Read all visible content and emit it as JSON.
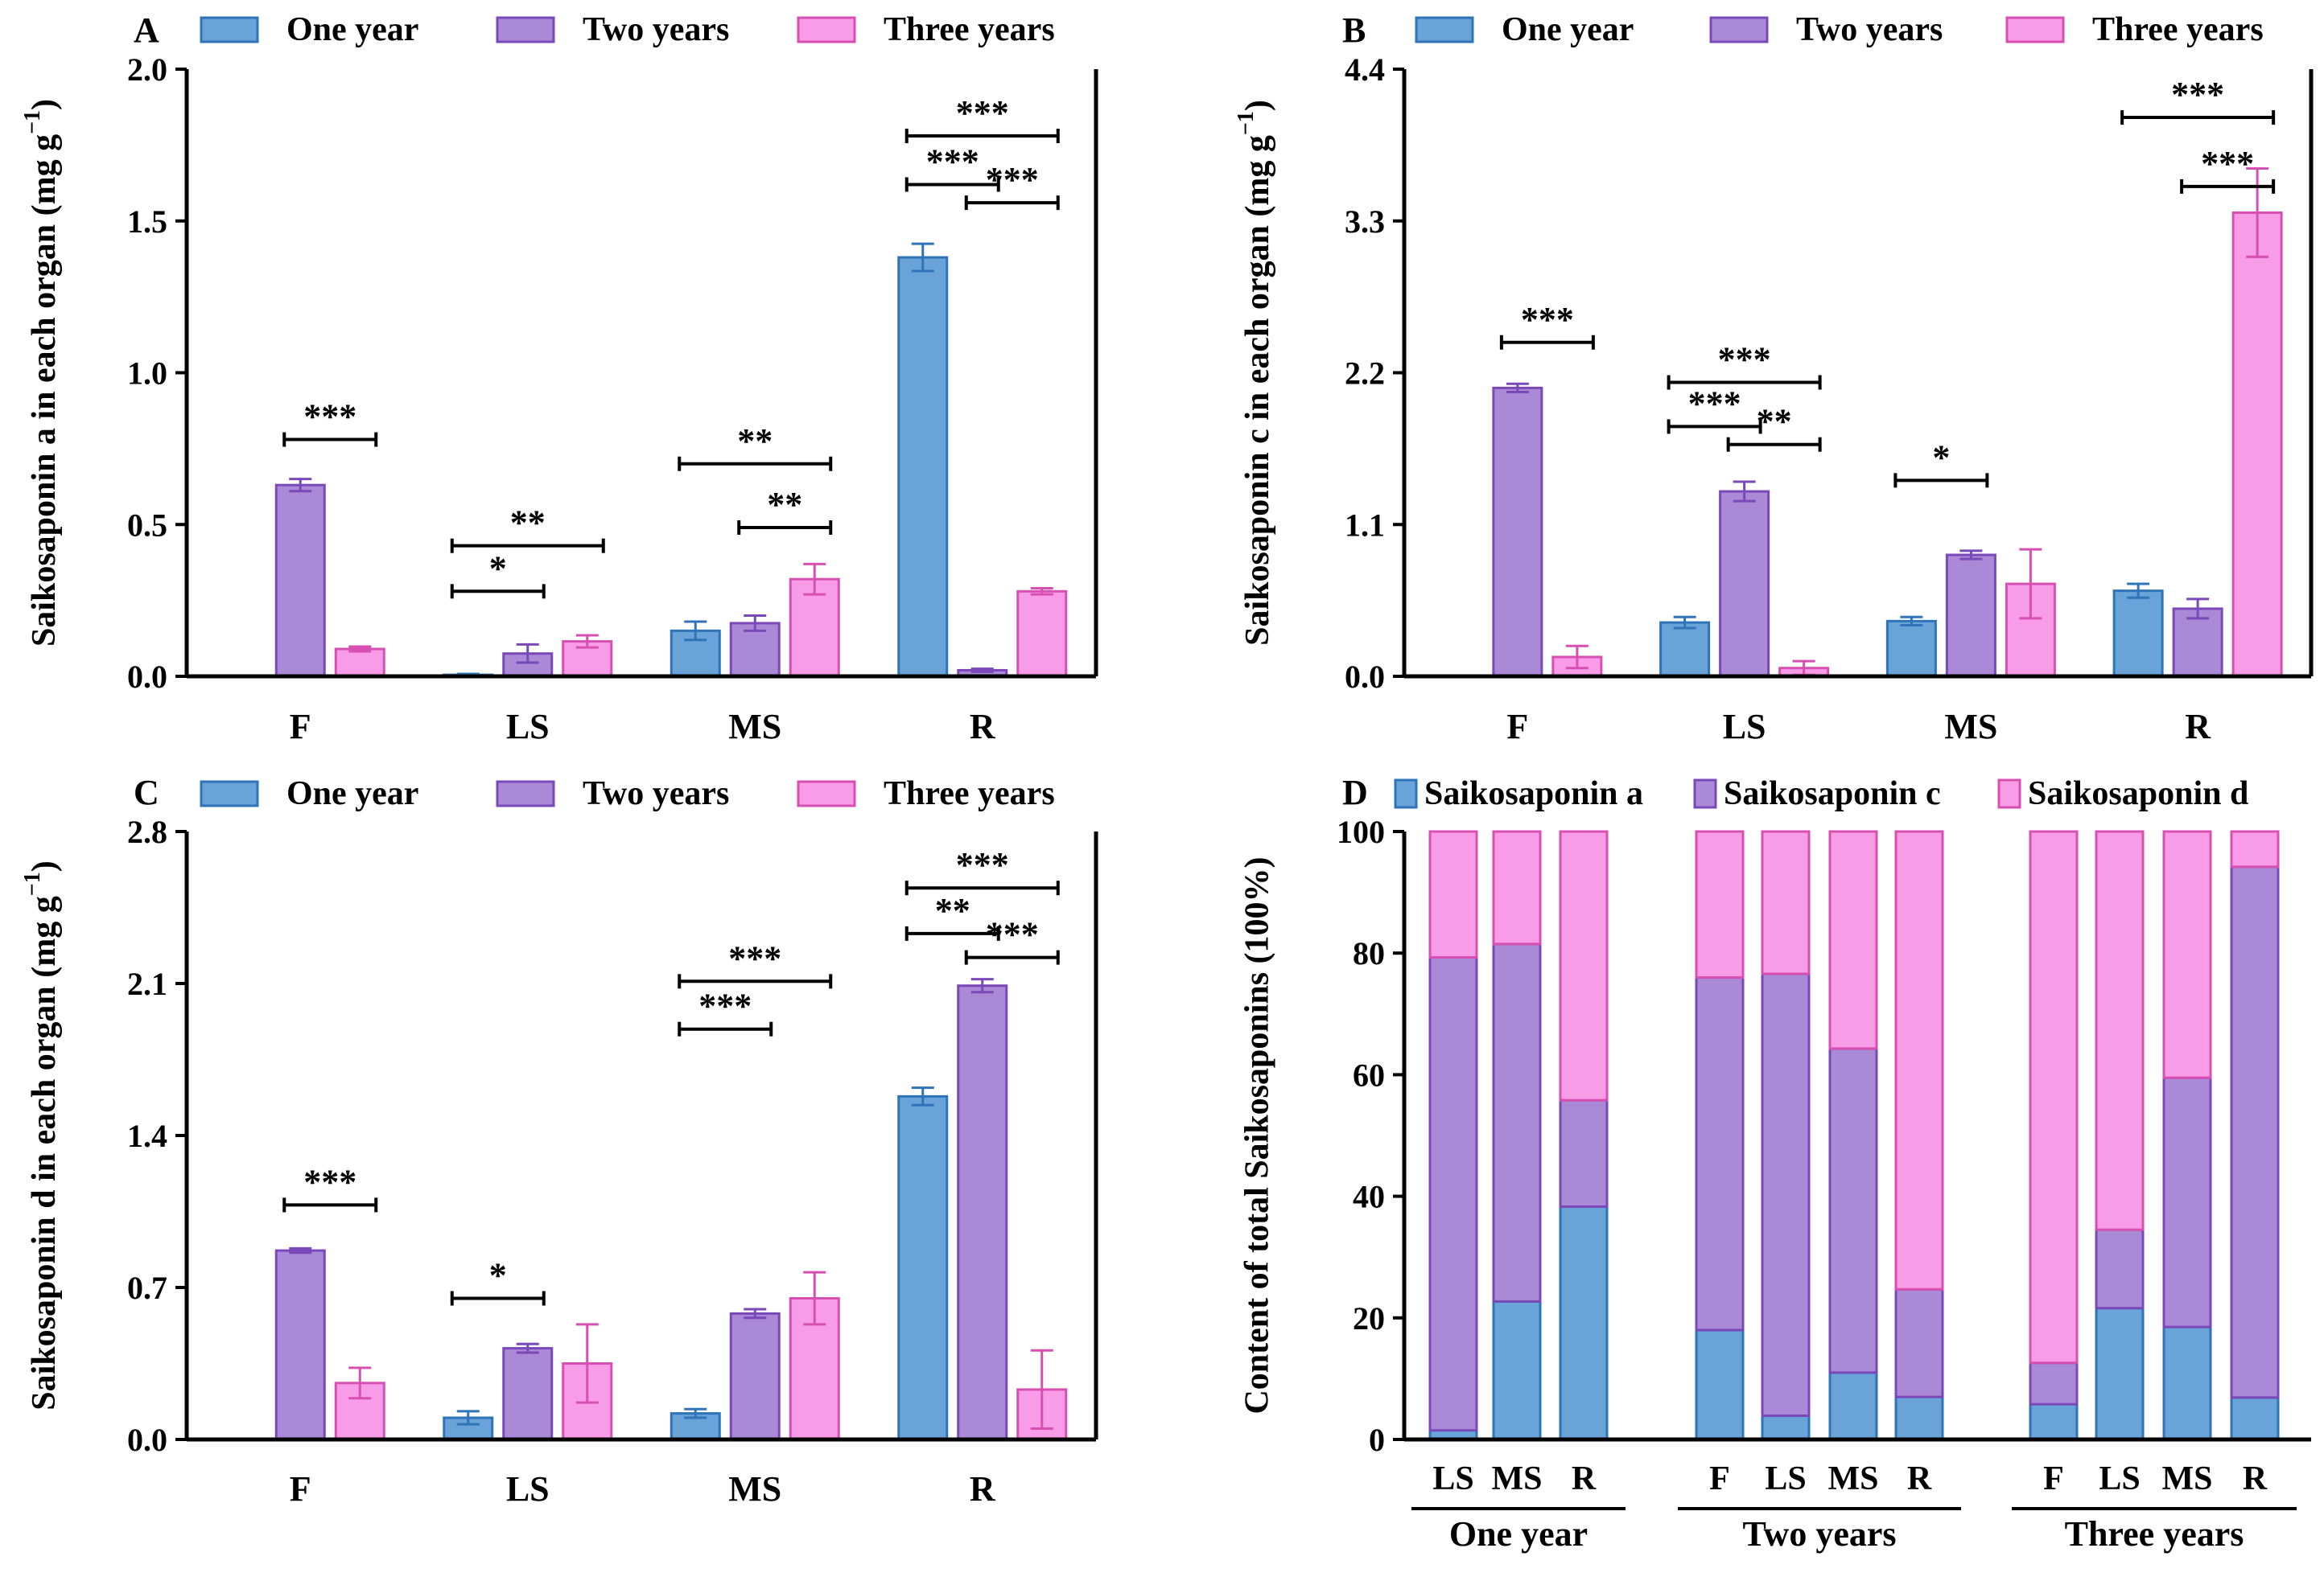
{
  "colors": {
    "one_year": "#6aa3d8",
    "one_year_edge": "#2f73b8",
    "two_years": "#aa8ad6",
    "two_years_edge": "#7a48b8",
    "three_years": "#f99ce8",
    "three_years_edge": "#d84fb2",
    "axis": "#000000"
  },
  "chart_data": [
    {
      "panel": "A",
      "type": "bar",
      "ylabel": "Saikosaponin a in each organ (mg g",
      "ylabel_sup": "−1",
      "ylabel_close": ")",
      "ylim": [
        0,
        2.0
      ],
      "yticks": [
        "0.0",
        "0.5",
        "1.0",
        "1.5",
        "2.0"
      ],
      "categories": [
        "F",
        "LS",
        "MS",
        "R"
      ],
      "legend": [
        "One year",
        "Two years",
        "Three years"
      ],
      "series": [
        {
          "name": "One year",
          "values": [
            null,
            0.005,
            0.15,
            1.38
          ],
          "errors": [
            null,
            0.003,
            0.03,
            0.045
          ]
        },
        {
          "name": "Two years",
          "values": [
            0.63,
            0.075,
            0.175,
            0.02
          ],
          "errors": [
            0.02,
            0.03,
            0.025,
            0.005
          ]
        },
        {
          "name": "Three years",
          "values": [
            0.09,
            0.115,
            0.32,
            0.28
          ],
          "errors": [
            0.008,
            0.02,
            0.05,
            0.01
          ]
        }
      ],
      "significance": [
        {
          "cat": 0,
          "from": 1,
          "to": 2,
          "label": "***",
          "level": 0.78
        },
        {
          "cat": 1,
          "from": 0,
          "to": 1,
          "label": "*",
          "level": 0.28
        },
        {
          "cat": 1,
          "from": 0,
          "to": 2,
          "label": "**",
          "level": 0.43
        },
        {
          "cat": 2,
          "from": 1,
          "to": 2,
          "label": "**",
          "level": 0.49
        },
        {
          "cat": 2,
          "from": 0,
          "to": 2,
          "label": "**",
          "level": 0.7
        },
        {
          "cat": 3,
          "from": 0,
          "to": 1,
          "label": "***",
          "level": 1.62
        },
        {
          "cat": 3,
          "from": 1,
          "to": 2,
          "label": "***",
          "level": 1.56
        },
        {
          "cat": 3,
          "from": 0,
          "to": 2,
          "label": "***",
          "level": 1.78
        }
      ]
    },
    {
      "panel": "B",
      "type": "bar",
      "ylabel": "Saikosaponin c in each organ (mg g",
      "ylabel_sup": "−1",
      "ylabel_close": ")",
      "ylim": [
        0,
        4.4
      ],
      "yticks": [
        "0.0",
        "1.1",
        "2.2",
        "3.3",
        "4.4"
      ],
      "categories": [
        "F",
        "LS",
        "MS",
        "R"
      ],
      "legend": [
        "One year",
        "Two years",
        "Three years"
      ],
      "series": [
        {
          "name": "One year",
          "values": [
            null,
            0.39,
            0.4,
            0.62
          ],
          "errors": [
            null,
            0.04,
            0.03,
            0.05
          ]
        },
        {
          "name": "Two years",
          "values": [
            2.09,
            1.34,
            0.88,
            0.49
          ],
          "errors": [
            0.03,
            0.07,
            0.03,
            0.07
          ]
        },
        {
          "name": "Three years",
          "values": [
            0.14,
            0.06,
            0.67,
            3.36
          ],
          "errors": [
            0.08,
            0.05,
            0.25,
            0.32
          ]
        }
      ],
      "significance": [
        {
          "cat": 0,
          "from": 1,
          "to": 2,
          "label": "***",
          "level": 2.42
        },
        {
          "cat": 1,
          "from": 0,
          "to": 1,
          "label": "***",
          "level": 1.81
        },
        {
          "cat": 1,
          "from": 1,
          "to": 2,
          "label": "**",
          "level": 1.68
        },
        {
          "cat": 1,
          "from": 0,
          "to": 2,
          "label": "***",
          "level": 2.13
        },
        {
          "cat": 2,
          "from": 0,
          "to": 1,
          "label": "*",
          "level": 1.42
        },
        {
          "cat": 3,
          "from": 1,
          "to": 2,
          "label": "***",
          "level": 3.55
        },
        {
          "cat": 3,
          "from": 0,
          "to": 2,
          "label": "***",
          "level": 4.05
        }
      ]
    },
    {
      "panel": "C",
      "type": "bar",
      "ylabel": "Saikosaponin d in each organ (mg g",
      "ylabel_sup": "−1",
      "ylabel_close": ")",
      "ylim": [
        0,
        2.8
      ],
      "yticks": [
        "0.0",
        "0.7",
        "1.4",
        "2.1",
        "2.8"
      ],
      "categories": [
        "F",
        "LS",
        "MS",
        "R"
      ],
      "legend": [
        "One year",
        "Two years",
        "Three years"
      ],
      "series": [
        {
          "name": "One year",
          "values": [
            null,
            0.1,
            0.12,
            1.58
          ],
          "errors": [
            null,
            0.03,
            0.02,
            0.04
          ]
        },
        {
          "name": "Two years",
          "values": [
            0.87,
            0.42,
            0.58,
            2.09
          ],
          "errors": [
            0.01,
            0.02,
            0.02,
            0.03
          ]
        },
        {
          "name": "Three years",
          "values": [
            0.26,
            0.35,
            0.65,
            0.23
          ],
          "errors": [
            0.07,
            0.18,
            0.12,
            0.18
          ]
        }
      ],
      "significance": [
        {
          "cat": 0,
          "from": 1,
          "to": 2,
          "label": "***",
          "level": 1.08
        },
        {
          "cat": 1,
          "from": 0,
          "to": 1,
          "label": "*",
          "level": 0.65
        },
        {
          "cat": 2,
          "from": 0,
          "to": 1,
          "label": "***",
          "level": 1.89
        },
        {
          "cat": 2,
          "from": 0,
          "to": 2,
          "label": "***",
          "level": 2.11
        },
        {
          "cat": 3,
          "from": 0,
          "to": 1,
          "label": "**",
          "level": 2.33
        },
        {
          "cat": 3,
          "from": 1,
          "to": 2,
          "label": "***",
          "level": 2.22
        },
        {
          "cat": 3,
          "from": 0,
          "to": 2,
          "label": "***",
          "level": 2.54
        }
      ]
    },
    {
      "panel": "D",
      "type": "bar",
      "stacked": true,
      "ylabel": "Content of total Saikosaponins (100%)",
      "ylim": [
        0,
        100
      ],
      "yticks": [
        "0",
        "20",
        "40",
        "60",
        "80",
        "100"
      ],
      "legend": [
        "Saikosaponin a",
        "Saikosaponin c",
        "Saikosaponin d"
      ],
      "groups": [
        {
          "name": "One year",
          "categories": [
            "LS",
            "MS",
            "R"
          ],
          "a": [
            1.5,
            22.7,
            38.3
          ],
          "c": [
            77.8,
            58.8,
            17.5
          ],
          "d": [
            20.7,
            18.5,
            44.2
          ]
        },
        {
          "name": "Two years",
          "categories": [
            "F",
            "LS",
            "MS",
            "R"
          ],
          "a": [
            18.0,
            3.9,
            11.0,
            7.0
          ],
          "c": [
            58.0,
            72.7,
            53.3,
            17.7
          ],
          "d": [
            24.0,
            23.4,
            35.7,
            75.3
          ]
        },
        {
          "name": "Three years",
          "categories": [
            "F",
            "LS",
            "MS",
            "R"
          ],
          "a": [
            5.8,
            21.6,
            18.5,
            6.9
          ],
          "c": [
            6.8,
            12.9,
            41.0,
            87.3
          ],
          "d": [
            87.4,
            65.5,
            40.5,
            5.8
          ]
        }
      ]
    }
  ]
}
